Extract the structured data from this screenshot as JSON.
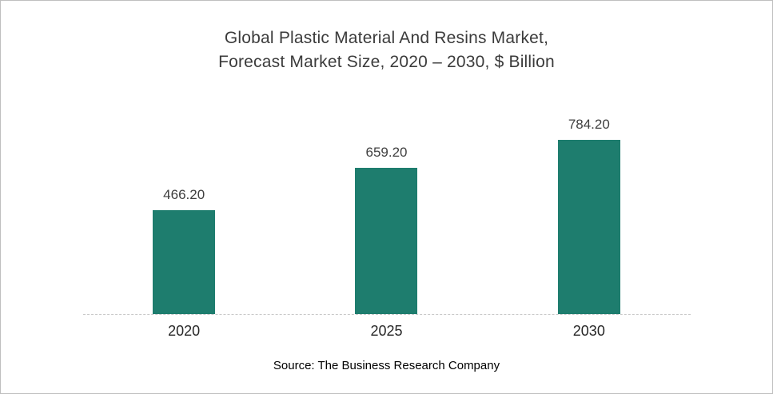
{
  "chart_data": {
    "type": "bar",
    "title_lines": [
      "Global Plastic Material And Resins Market,",
      "Forecast Market Size, 2020 – 2030, $ Billion"
    ],
    "categories": [
      "2020",
      "2025",
      "2030"
    ],
    "values": [
      466.2,
      659.2,
      784.2
    ],
    "value_labels": [
      "466.20",
      "659.20",
      "784.20"
    ],
    "bar_color": "#1e7d6e",
    "ylim": [
      0,
      800
    ],
    "grid": false,
    "legend": "none",
    "xlabel": "",
    "ylabel": "",
    "source": "Source: The Business Research Company"
  }
}
